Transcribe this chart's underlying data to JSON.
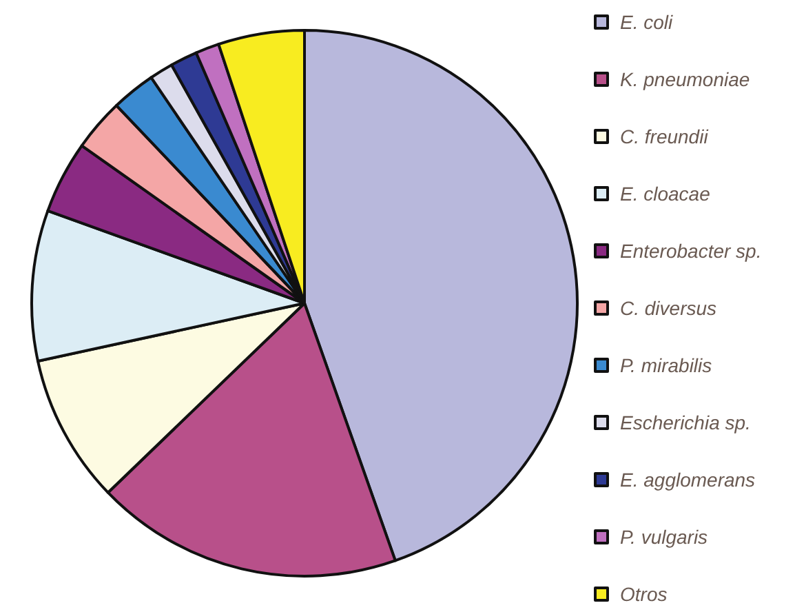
{
  "chart_data": {
    "type": "pie",
    "categories": [
      "E. coli",
      "K. pneumoniae",
      "C. freundii",
      "E. cloacae",
      "Enterobacter sp.",
      "C. diversus",
      "P. mirabilis",
      "Escherichia sp.",
      "E. agglomerans",
      "P. vulgaris",
      "Otros"
    ],
    "values": [
      44.6,
      18.2,
      8.8,
      8.9,
      4.3,
      3.1,
      2.6,
      1.4,
      1.6,
      1.4,
      5.1
    ],
    "colors": [
      "#b8b8dc",
      "#b8508a",
      "#fdfbe2",
      "#dcedf5",
      "#8a2a82",
      "#f4a6a6",
      "#3a8ad0",
      "#dcdcec",
      "#2e3a94",
      "#c070c0",
      "#f8ec20"
    ],
    "legend": "right"
  }
}
